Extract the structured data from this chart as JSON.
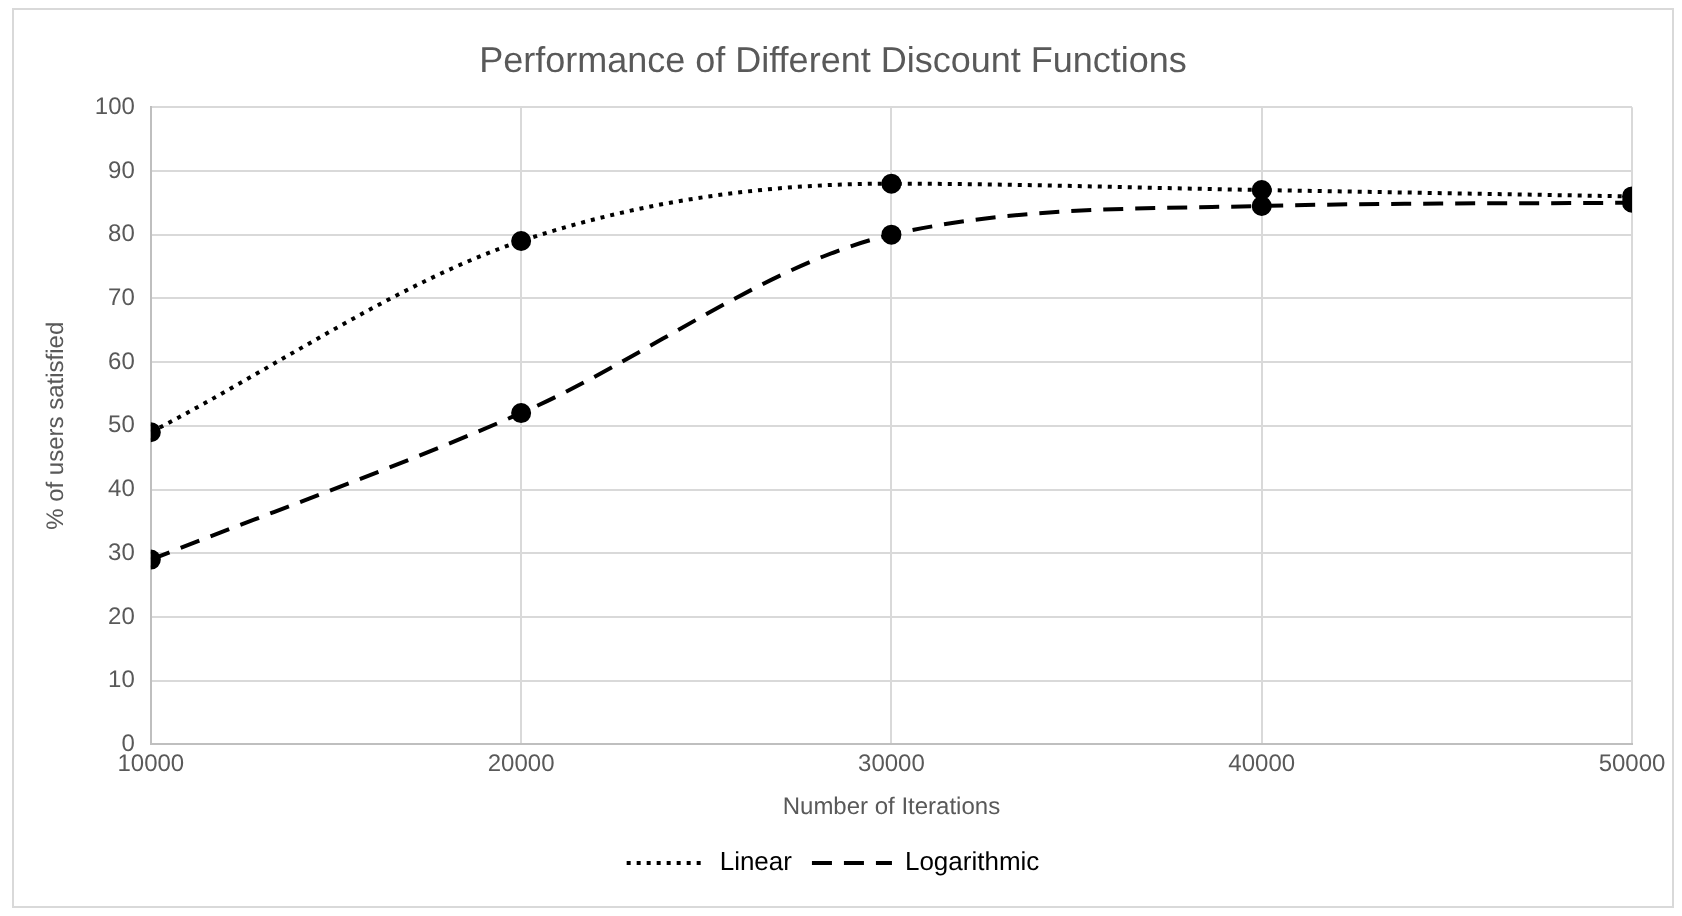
{
  "chart_data": {
    "type": "line",
    "title": "Performance of Different Discount Functions",
    "xlabel": "Number of Iterations",
    "ylabel": "% of users satisfied",
    "x": [
      10000,
      20000,
      30000,
      40000,
      50000
    ],
    "series": [
      {
        "name": "Linear",
        "color": "#000000",
        "line_style": "dotted",
        "values": [
          49,
          79,
          88,
          87,
          86
        ]
      },
      {
        "name": "Logarithmic",
        "color": "#000000",
        "line_style": "dashed",
        "values": [
          29,
          52,
          80,
          84.5,
          85
        ]
      }
    ],
    "xlim": [
      10000,
      50000
    ],
    "xticks": [
      10000,
      20000,
      30000,
      40000,
      50000
    ],
    "ylim": [
      0,
      100
    ],
    "yticks": [
      0,
      10,
      20,
      30,
      40,
      50,
      60,
      70,
      80,
      90,
      100
    ],
    "grid": true,
    "legend": "bottom",
    "marker": "circle"
  }
}
